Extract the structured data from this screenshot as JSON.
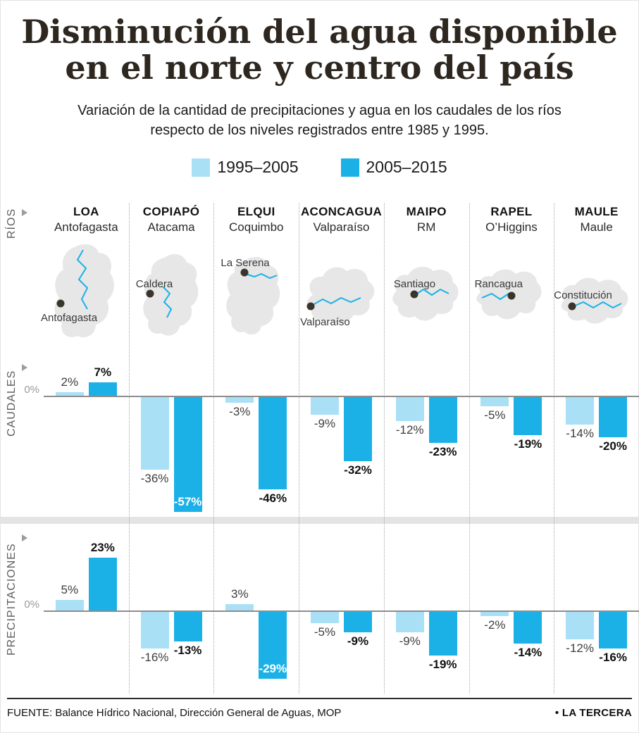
{
  "header": {
    "title_line1": "Disminución del agua disponible",
    "title_line2": "en el norte y centro del país",
    "subtitle_line1": "Variación de la cantidad de precipitaciones y agua en los caudales de los ríos",
    "subtitle_line2": "respecto de los niveles registrados entre 1985 y 1995."
  },
  "legend": {
    "series1": {
      "label": "1995–2005",
      "color": "#a9e0f6"
    },
    "series2": {
      "label": "2005–2015",
      "color": "#1cb1e6"
    }
  },
  "row_labels": {
    "rios": "RÍOS",
    "caudales": "CAUDALES",
    "precipitaciones": "PRECIPITACIONES"
  },
  "zero_label": "0%",
  "footer": {
    "source": "FUENTE: Balance Hídrico Nacional, Dirección General de Aguas, MOP",
    "brand": "• LA TERCERA"
  },
  "chart_data": {
    "type": "bar",
    "title": "Disminución del agua disponible en el norte y centro del país",
    "unit": "%",
    "categories": [
      "LOA",
      "COPIAPÓ",
      "ELQUI",
      "ACONCAGUA",
      "MAIPO",
      "RAPEL",
      "MAULE"
    ],
    "regions": [
      "Antofagasta",
      "Atacama",
      "Coquimbo",
      "Valparaíso",
      "RM",
      "O’Higgins",
      "Maule"
    ],
    "cities": [
      "Antofagasta",
      "Caldera",
      "La Serena",
      "Valparaíso",
      "Santiago",
      "Rancagua",
      "Constitución"
    ],
    "series_labels": [
      "1995–2005",
      "2005–2015"
    ],
    "sections": [
      {
        "name": "CAUDALES",
        "series": [
          {
            "name": "1995–2005",
            "values": [
              2,
              -36,
              -3,
              -9,
              -12,
              -5,
              -14
            ]
          },
          {
            "name": "2005–2015",
            "values": [
              7,
              -57,
              -46,
              -32,
              -23,
              -19,
              -20
            ]
          }
        ]
      },
      {
        "name": "PRECIPITACIONES",
        "series": [
          {
            "name": "1995–2005",
            "values": [
              5,
              -16,
              3,
              -5,
              -9,
              -2,
              -12
            ]
          },
          {
            "name": "2005–2015",
            "values": [
              23,
              -13,
              -29,
              -9,
              -19,
              -14,
              -16
            ]
          }
        ]
      }
    ]
  }
}
